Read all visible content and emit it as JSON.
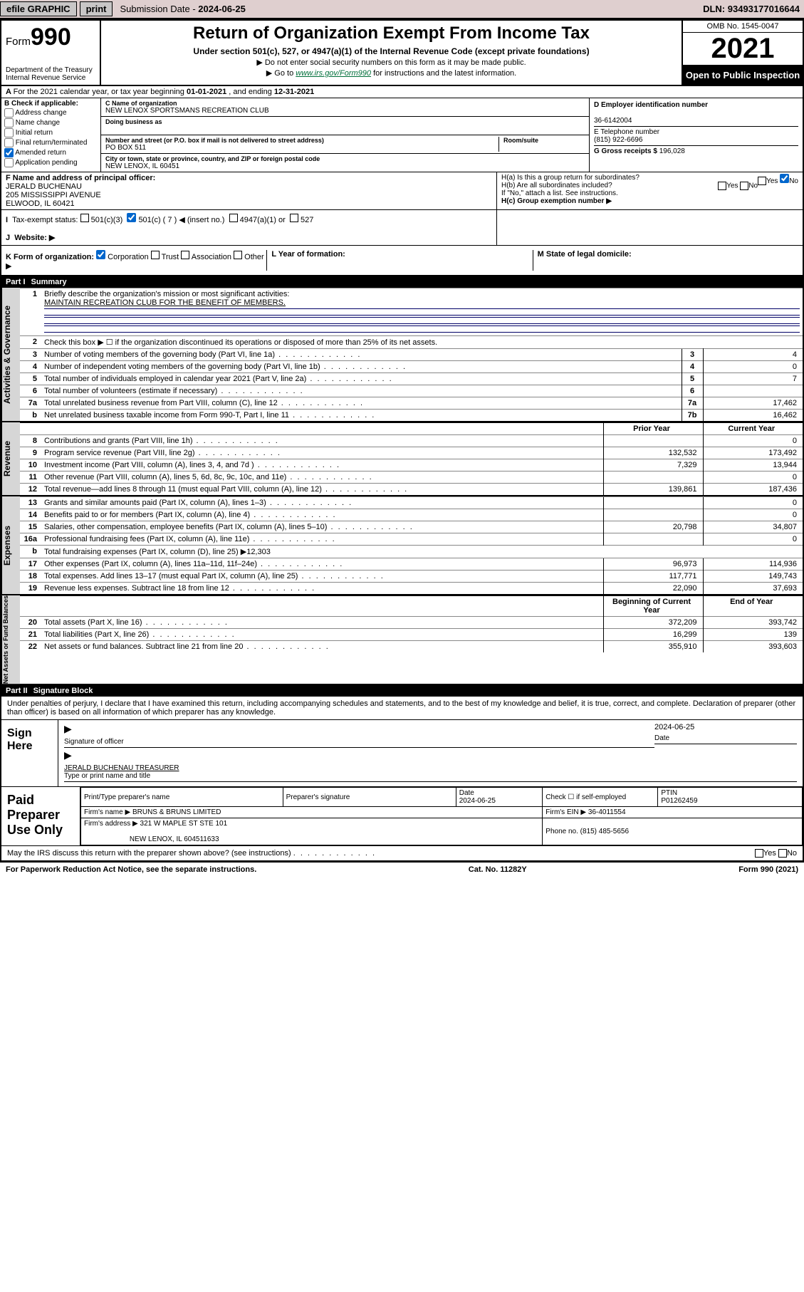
{
  "topbar": {
    "efile": "efile GRAPHIC",
    "print": "print",
    "sub_label": "Submission Date - ",
    "sub_date": "2024-06-25",
    "dln_label": "DLN: ",
    "dln": "93493177016644"
  },
  "header": {
    "form_prefix": "Form",
    "form_num": "990",
    "title": "Return of Organization Exempt From Income Tax",
    "subtitle": "Under section 501(c), 527, or 4947(a)(1) of the Internal Revenue Code (except private foundations)",
    "arrow1": "▶ Do not enter social security numbers on this form as it may be made public.",
    "arrow2_pre": "▶ Go to ",
    "arrow2_link": "www.irs.gov/Form990",
    "arrow2_post": " for instructions and the latest information.",
    "dept": "Department of the Treasury\nInternal Revenue Service",
    "omb": "OMB No. 1545-0047",
    "year": "2021",
    "open": "Open to Public Inspection"
  },
  "rowA": {
    "text_pre": "For the 2021 calendar year, or tax year beginning ",
    "begin": "01-01-2021",
    "mid": " , and ending ",
    "end": "12-31-2021"
  },
  "B": {
    "hdr": "B Check if applicable:",
    "opts": [
      "Address change",
      "Name change",
      "Initial return",
      "Final return/terminated",
      "Amended return",
      "Application pending"
    ],
    "amended_checked": true
  },
  "C": {
    "name_lbl": "C Name of organization",
    "name": "NEW LENOX SPORTSMANS RECREATION CLUB",
    "dba_lbl": "Doing business as",
    "addr_lbl": "Number and street (or P.O. box if mail is not delivered to street address)",
    "room_lbl": "Room/suite",
    "addr": "PO BOX 511",
    "city_lbl": "City or town, state or province, country, and ZIP or foreign postal code",
    "city": "NEW LENOX, IL  60451"
  },
  "D": {
    "ein_lbl": "D Employer identification number",
    "ein": "36-6142004",
    "phone_lbl": "E Telephone number",
    "phone": "(815) 922-6696",
    "gross_lbl": "G Gross receipts $",
    "gross": "196,028"
  },
  "F": {
    "lbl": "F Name and address of principal officer:",
    "name": "JERALD BUCHENAU",
    "addr1": "205 MISSISSIPPI AVENUE",
    "addr2": "ELWOOD, IL  60421"
  },
  "H": {
    "a": "H(a)  Is this a group return for subordinates?",
    "b": "H(b)  Are all subordinates included?",
    "b_note": "If \"No,\" attach a list. See instructions.",
    "c": "H(c)  Group exemption number ▶",
    "yes": "Yes",
    "no": "No"
  },
  "I": {
    "lbl": "Tax-exempt status:",
    "o1": "501(c)(3)",
    "o2_pre": "501(c) (",
    "o2_num": "7",
    "o2_post": ") ◀ (insert no.)",
    "o3": "4947(a)(1) or",
    "o4": "527"
  },
  "J": {
    "lbl": "Website: ▶"
  },
  "K": {
    "lbl": "K Form of organization:",
    "o1": "Corporation",
    "o2": "Trust",
    "o3": "Association",
    "o4": "Other ▶",
    "L": "L Year of formation:",
    "M": "M State of legal domicile:"
  },
  "part1": {
    "num": "Part I",
    "title": "Summary"
  },
  "summary": {
    "l1_lbl": "Briefly describe the organization's mission or most significant activities:",
    "l1_val": "MAINTAIN RECREATION CLUB FOR THE BENEFIT OF MEMBERS.",
    "l2": "Check this box ▶ ☐  if the organization discontinued its operations or disposed of more than 25% of its net assets.",
    "rows_single": [
      {
        "n": "3",
        "d": "Number of voting members of the governing body (Part VI, line 1a)",
        "box": "3",
        "v": "4"
      },
      {
        "n": "4",
        "d": "Number of independent voting members of the governing body (Part VI, line 1b)",
        "box": "4",
        "v": "0"
      },
      {
        "n": "5",
        "d": "Total number of individuals employed in calendar year 2021 (Part V, line 2a)",
        "box": "5",
        "v": "7"
      },
      {
        "n": "6",
        "d": "Total number of volunteers (estimate if necessary)",
        "box": "6",
        "v": ""
      },
      {
        "n": "7a",
        "d": "Total unrelated business revenue from Part VIII, column (C), line 12",
        "box": "7a",
        "v": "17,462"
      },
      {
        "n": "b",
        "d": "Net unrelated business taxable income from Form 990-T, Part I, line 11",
        "box": "7b",
        "v": "16,462"
      }
    ],
    "col_hdr_prior": "Prior Year",
    "col_hdr_curr": "Current Year",
    "revenue": [
      {
        "n": "8",
        "d": "Contributions and grants (Part VIII, line 1h)",
        "p": "",
        "c": "0"
      },
      {
        "n": "9",
        "d": "Program service revenue (Part VIII, line 2g)",
        "p": "132,532",
        "c": "173,492"
      },
      {
        "n": "10",
        "d": "Investment income (Part VIII, column (A), lines 3, 4, and 7d )",
        "p": "7,329",
        "c": "13,944"
      },
      {
        "n": "11",
        "d": "Other revenue (Part VIII, column (A), lines 5, 6d, 8c, 9c, 10c, and 11e)",
        "p": "",
        "c": "0"
      },
      {
        "n": "12",
        "d": "Total revenue—add lines 8 through 11 (must equal Part VIII, column (A), line 12)",
        "p": "139,861",
        "c": "187,436"
      }
    ],
    "expenses": [
      {
        "n": "13",
        "d": "Grants and similar amounts paid (Part IX, column (A), lines 1–3)",
        "p": "",
        "c": "0"
      },
      {
        "n": "14",
        "d": "Benefits paid to or for members (Part IX, column (A), line 4)",
        "p": "",
        "c": "0"
      },
      {
        "n": "15",
        "d": "Salaries, other compensation, employee benefits (Part IX, column (A), lines 5–10)",
        "p": "20,798",
        "c": "34,807"
      },
      {
        "n": "16a",
        "d": "Professional fundraising fees (Part IX, column (A), line 11e)",
        "p": "",
        "c": "0"
      },
      {
        "n": "b",
        "d": "Total fundraising expenses (Part IX, column (D), line 25) ▶12,303",
        "p": "",
        "c": "",
        "nobox": true
      },
      {
        "n": "17",
        "d": "Other expenses (Part IX, column (A), lines 11a–11d, 11f–24e)",
        "p": "96,973",
        "c": "114,936"
      },
      {
        "n": "18",
        "d": "Total expenses. Add lines 13–17 (must equal Part IX, column (A), line 25)",
        "p": "117,771",
        "c": "149,743"
      },
      {
        "n": "19",
        "d": "Revenue less expenses. Subtract line 18 from line 12",
        "p": "22,090",
        "c": "37,693"
      }
    ],
    "col_hdr_beg": "Beginning of Current Year",
    "col_hdr_end": "End of Year",
    "netassets": [
      {
        "n": "20",
        "d": "Total assets (Part X, line 16)",
        "p": "372,209",
        "c": "393,742"
      },
      {
        "n": "21",
        "d": "Total liabilities (Part X, line 26)",
        "p": "16,299",
        "c": "139"
      },
      {
        "n": "22",
        "d": "Net assets or fund balances. Subtract line 21 from line 20",
        "p": "355,910",
        "c": "393,603"
      }
    ],
    "vlabels": {
      "gov": "Activities & Governance",
      "rev": "Revenue",
      "exp": "Expenses",
      "net": "Net Assets or Fund Balances"
    }
  },
  "part2": {
    "num": "Part II",
    "title": "Signature Block"
  },
  "sig": {
    "decl": "Under penalties of perjury, I declare that I have examined this return, including accompanying schedules and statements, and to the best of my knowledge and belief, it is true, correct, and complete. Declaration of preparer (other than officer) is based on all information of which preparer has any knowledge.",
    "sign_here": "Sign Here",
    "sig_officer": "Signature of officer",
    "date": "2024-06-25",
    "date_lbl": "Date",
    "name": "JERALD BUCHENAU  TREASURER",
    "name_lbl": "Type or print name and title"
  },
  "preparer": {
    "lbl": "Paid Preparer Use Only",
    "h1": "Print/Type preparer's name",
    "h2": "Preparer's signature",
    "h3": "Date",
    "h3v": "2024-06-25",
    "h4": "Check ☐ if self-employed",
    "h5": "PTIN",
    "h5v": "P01262459",
    "firm_lbl": "Firm's name    ▶",
    "firm": "BRUNS & BRUNS LIMITED",
    "ein_lbl": "Firm's EIN ▶",
    "ein": "36-4011554",
    "addr_lbl": "Firm's address ▶",
    "addr1": "321 W MAPLE ST STE 101",
    "addr2": "NEW LENOX, IL  604511633",
    "ph_lbl": "Phone no.",
    "ph": "(815) 485-5656",
    "discuss": "May the IRS discuss this return with the preparer shown above? (see instructions)"
  },
  "footer": {
    "l": "For Paperwork Reduction Act Notice, see the separate instructions.",
    "c": "Cat. No. 11282Y",
    "r": "Form 990 (2021)"
  }
}
